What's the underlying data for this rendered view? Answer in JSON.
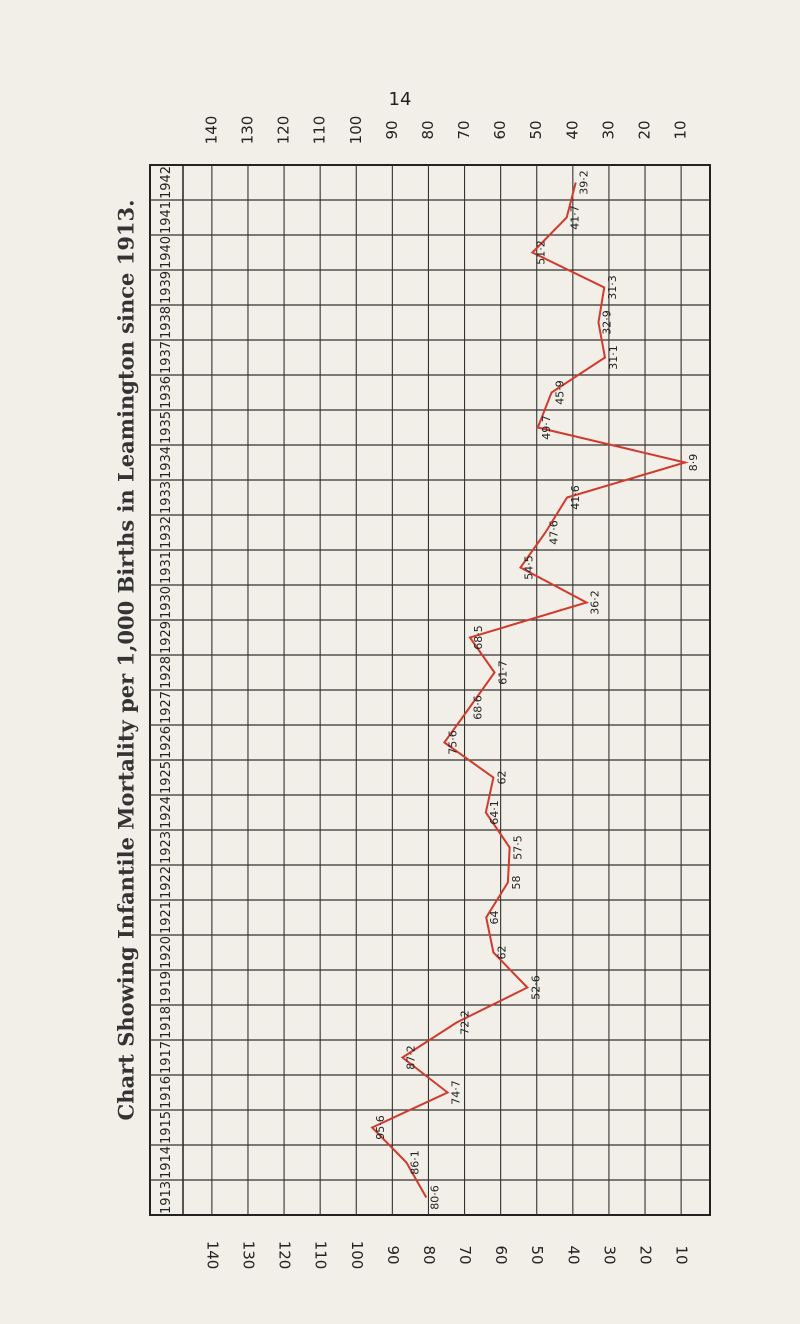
{
  "page_number": "14",
  "chart_data": {
    "type": "line",
    "title": "Chart Showing Infantile Mortality per 1,000 Births in Leamington since 1913.",
    "categories": [
      "1913",
      "1914",
      "1915",
      "1916",
      "1917",
      "1918",
      "1919",
      "1920",
      "1921",
      "1922",
      "1923",
      "1924",
      "1925",
      "1926",
      "1927",
      "1928",
      "1929",
      "1930",
      "1931",
      "1932",
      "1933",
      "1934",
      "1935",
      "1936",
      "1937",
      "1938",
      "1939",
      "1940",
      "1941",
      "1942"
    ],
    "values": [
      80.6,
      86.1,
      95.6,
      74.7,
      87.2,
      72.2,
      52.6,
      62,
      64,
      58,
      57.5,
      64.1,
      62,
      75.6,
      68.6,
      61.7,
      68.5,
      36.2,
      54.5,
      47.6,
      41.6,
      8.9,
      49.7,
      45.9,
      31.1,
      32.9,
      31.3,
      51.2,
      41.7,
      39.2
    ],
    "value_labels": [
      "80·6",
      "86·1",
      "95·6",
      "74·7",
      "87·2",
      "72·2",
      "52·6",
      "62",
      "64",
      "58",
      "57·5",
      "64·1",
      "62",
      "75·6",
      "68·6",
      "61·7",
      "68·5",
      "36·2",
      "54·5",
      "47·6",
      "41·6",
      "8·9",
      "49·7",
      "45·9",
      "31·1",
      "32·9",
      "31·3",
      "51·2",
      "41·7",
      "39·2"
    ],
    "color": "#d23a2e",
    "ylim": [
      148,
      2
    ],
    "yticks": [
      140,
      130,
      120,
      110,
      100,
      90,
      80,
      70,
      60,
      50,
      40,
      30,
      20,
      10
    ],
    "grid": true
  }
}
